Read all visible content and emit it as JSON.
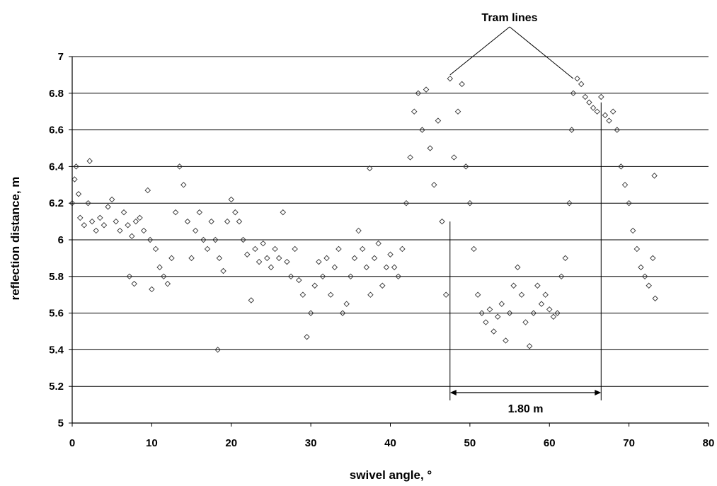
{
  "chart_data": {
    "type": "scatter",
    "title": "",
    "xlabel": "swivel angle, °",
    "ylabel": "reflection distance, m",
    "xlim": [
      0,
      80
    ],
    "ylim": [
      5,
      7
    ],
    "xticks": [
      0,
      10,
      20,
      30,
      40,
      50,
      60,
      70,
      80
    ],
    "yticks": [
      5,
      5.2,
      5.4,
      5.6,
      5.8,
      6,
      6.2,
      6.4,
      6.6,
      6.8,
      7
    ],
    "ytick_labels": [
      "5",
      "5.2",
      "5.4",
      "5.6",
      "5.8",
      "6",
      "6.2",
      "6.4",
      "6.6",
      "6.8",
      "7"
    ],
    "grid": "horizontal",
    "marker": "diamond-open",
    "marker_color": "#333333",
    "series": [
      {
        "values_description": "",
        "points": [
          [
            0.0,
            6.2
          ],
          [
            0.3,
            6.33
          ],
          [
            0.5,
            6.4
          ],
          [
            0.8,
            6.25
          ],
          [
            1.0,
            6.12
          ],
          [
            1.5,
            6.08
          ],
          [
            2.0,
            6.2
          ],
          [
            2.2,
            6.43
          ],
          [
            2.5,
            6.1
          ],
          [
            3.0,
            6.05
          ],
          [
            3.5,
            6.12
          ],
          [
            4.0,
            6.08
          ],
          [
            4.5,
            6.18
          ],
          [
            5.0,
            6.22
          ],
          [
            5.5,
            6.1
          ],
          [
            6.0,
            6.05
          ],
          [
            6.5,
            6.15
          ],
          [
            7.0,
            6.08
          ],
          [
            7.2,
            5.8
          ],
          [
            7.5,
            6.02
          ],
          [
            7.8,
            5.76
          ],
          [
            8.0,
            6.1
          ],
          [
            8.5,
            6.12
          ],
          [
            9.0,
            6.05
          ],
          [
            9.5,
            6.27
          ],
          [
            9.8,
            6.0
          ],
          [
            10.0,
            5.73
          ],
          [
            10.5,
            5.95
          ],
          [
            11.0,
            5.85
          ],
          [
            11.5,
            5.8
          ],
          [
            12.0,
            5.76
          ],
          [
            12.5,
            5.9
          ],
          [
            13.0,
            6.15
          ],
          [
            13.5,
            6.4
          ],
          [
            14.0,
            6.3
          ],
          [
            14.5,
            6.1
          ],
          [
            15.0,
            5.9
          ],
          [
            15.5,
            6.05
          ],
          [
            16.0,
            6.15
          ],
          [
            16.5,
            6.0
          ],
          [
            17.0,
            5.95
          ],
          [
            17.5,
            6.1
          ],
          [
            18.0,
            6.0
          ],
          [
            18.3,
            5.4
          ],
          [
            18.5,
            5.9
          ],
          [
            19.0,
            5.83
          ],
          [
            19.5,
            6.1
          ],
          [
            20.0,
            6.22
          ],
          [
            20.5,
            6.15
          ],
          [
            21.0,
            6.1
          ],
          [
            21.5,
            6.0
          ],
          [
            22.0,
            5.92
          ],
          [
            22.5,
            5.67
          ],
          [
            23.0,
            5.95
          ],
          [
            23.5,
            5.88
          ],
          [
            24.0,
            5.98
          ],
          [
            24.5,
            5.9
          ],
          [
            25.0,
            5.85
          ],
          [
            25.5,
            5.95
          ],
          [
            26.0,
            5.9
          ],
          [
            26.5,
            6.15
          ],
          [
            27.0,
            5.88
          ],
          [
            27.5,
            5.8
          ],
          [
            28.0,
            5.95
          ],
          [
            28.5,
            5.78
          ],
          [
            29.0,
            5.7
          ],
          [
            29.5,
            5.47
          ],
          [
            30.0,
            5.6
          ],
          [
            30.5,
            5.75
          ],
          [
            31.0,
            5.88
          ],
          [
            31.5,
            5.8
          ],
          [
            32.0,
            5.9
          ],
          [
            32.5,
            5.7
          ],
          [
            33.0,
            5.85
          ],
          [
            33.5,
            5.95
          ],
          [
            34.0,
            5.6
          ],
          [
            34.5,
            5.65
          ],
          [
            35.0,
            5.8
          ],
          [
            35.5,
            5.9
          ],
          [
            36.0,
            6.05
          ],
          [
            36.5,
            5.95
          ],
          [
            37.0,
            5.85
          ],
          [
            37.4,
            6.39
          ],
          [
            37.5,
            5.7
          ],
          [
            38.0,
            5.9
          ],
          [
            38.5,
            5.98
          ],
          [
            39.0,
            5.75
          ],
          [
            39.5,
            5.85
          ],
          [
            40.0,
            5.92
          ],
          [
            40.5,
            5.85
          ],
          [
            41.0,
            5.8
          ],
          [
            41.5,
            5.95
          ],
          [
            42.0,
            6.2
          ],
          [
            42.5,
            6.45
          ],
          [
            43.0,
            6.7
          ],
          [
            43.5,
            6.8
          ],
          [
            44.0,
            6.6
          ],
          [
            44.5,
            6.82
          ],
          [
            45.0,
            6.5
          ],
          [
            45.5,
            6.3
          ],
          [
            46.0,
            6.65
          ],
          [
            46.5,
            6.1
          ],
          [
            47.0,
            5.7
          ],
          [
            47.5,
            6.88
          ],
          [
            48.0,
            6.45
          ],
          [
            48.5,
            6.7
          ],
          [
            49.0,
            6.85
          ],
          [
            49.5,
            6.4
          ],
          [
            50.0,
            6.2
          ],
          [
            50.5,
            5.95
          ],
          [
            51.0,
            5.7
          ],
          [
            51.5,
            5.6
          ],
          [
            52.0,
            5.55
          ],
          [
            52.5,
            5.62
          ],
          [
            53.0,
            5.5
          ],
          [
            53.5,
            5.58
          ],
          [
            54.0,
            5.65
          ],
          [
            54.5,
            5.45
          ],
          [
            55.0,
            5.6
          ],
          [
            55.5,
            5.75
          ],
          [
            56.0,
            5.85
          ],
          [
            56.5,
            5.7
          ],
          [
            57.0,
            5.55
          ],
          [
            57.5,
            5.42
          ],
          [
            58.0,
            5.6
          ],
          [
            58.5,
            5.75
          ],
          [
            59.0,
            5.65
          ],
          [
            59.5,
            5.7
          ],
          [
            60.0,
            5.62
          ],
          [
            60.5,
            5.58
          ],
          [
            61.0,
            5.6
          ],
          [
            61.5,
            5.8
          ],
          [
            62.0,
            5.9
          ],
          [
            62.5,
            6.2
          ],
          [
            62.8,
            6.6
          ],
          [
            63.0,
            6.8
          ],
          [
            63.5,
            6.88
          ],
          [
            64.0,
            6.85
          ],
          [
            64.5,
            6.78
          ],
          [
            65.0,
            6.75
          ],
          [
            65.5,
            6.72
          ],
          [
            66.0,
            6.7
          ],
          [
            66.5,
            6.78
          ],
          [
            67.0,
            6.68
          ],
          [
            67.5,
            6.65
          ],
          [
            68.0,
            6.7
          ],
          [
            68.5,
            6.6
          ],
          [
            69.0,
            6.4
          ],
          [
            69.5,
            6.3
          ],
          [
            70.0,
            6.2
          ],
          [
            70.5,
            6.05
          ],
          [
            71.0,
            5.95
          ],
          [
            71.5,
            5.85
          ],
          [
            72.0,
            5.8
          ],
          [
            72.5,
            5.75
          ],
          [
            73.0,
            5.9
          ],
          [
            73.2,
            6.35
          ],
          [
            73.3,
            5.68
          ]
        ]
      }
    ],
    "annotations": [
      {
        "text": "Tram lines",
        "type": "callout",
        "targets": [
          47.5,
          63.0
        ]
      },
      {
        "text": "1.80 m",
        "type": "dimension",
        "x_start": 47.5,
        "x_end": 66.5
      }
    ]
  }
}
